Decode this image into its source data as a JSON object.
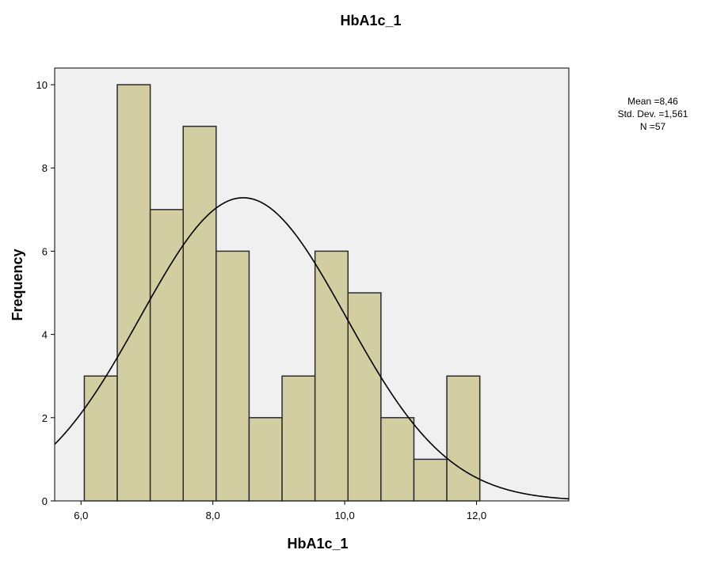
{
  "chart_data": {
    "type": "bar",
    "subtype": "histogram",
    "title": "HbA1c_1",
    "xlabel": "HbA1c_1",
    "ylabel": "Frequency",
    "xlim": [
      5.6,
      13.4
    ],
    "ylim": [
      0,
      10.4
    ],
    "x_ticks": [
      6.0,
      8.0,
      10.0,
      12.0
    ],
    "x_tick_labels": [
      "6,0",
      "8,0",
      "10,0",
      "12,0"
    ],
    "y_ticks": [
      0,
      2,
      4,
      6,
      8,
      10
    ],
    "y_tick_labels": [
      "0",
      "2",
      "4",
      "6",
      "8",
      "10"
    ],
    "bins": [
      {
        "x0": 6.05,
        "x1": 6.55,
        "count": 3
      },
      {
        "x0": 6.55,
        "x1": 7.05,
        "count": 10
      },
      {
        "x0": 7.05,
        "x1": 7.55,
        "count": 7
      },
      {
        "x0": 7.55,
        "x1": 8.05,
        "count": 9
      },
      {
        "x0": 8.05,
        "x1": 8.55,
        "count": 6
      },
      {
        "x0": 8.55,
        "x1": 9.05,
        "count": 2
      },
      {
        "x0": 9.05,
        "x1": 9.55,
        "count": 3
      },
      {
        "x0": 9.55,
        "x1": 10.05,
        "count": 6
      },
      {
        "x0": 10.05,
        "x1": 10.55,
        "count": 5
      },
      {
        "x0": 10.55,
        "x1": 11.05,
        "count": 2
      },
      {
        "x0": 11.05,
        "x1": 11.55,
        "count": 1
      },
      {
        "x0": 11.55,
        "x1": 12.05,
        "count": 3
      }
    ],
    "normal_curve": {
      "mean": 8.46,
      "std_dev": 1.561,
      "n": 57,
      "bin_width": 0.5
    },
    "stats": {
      "mean_text": "Mean =8,46",
      "std_text": "Std. Dev. =1,561",
      "n_text": "N =57"
    },
    "grid": false,
    "colors": {
      "bar_fill": "#d3cea1",
      "bar_stroke": "#2b2b2b",
      "plot_background": "#f0f0f0",
      "curve": "#000000"
    }
  }
}
